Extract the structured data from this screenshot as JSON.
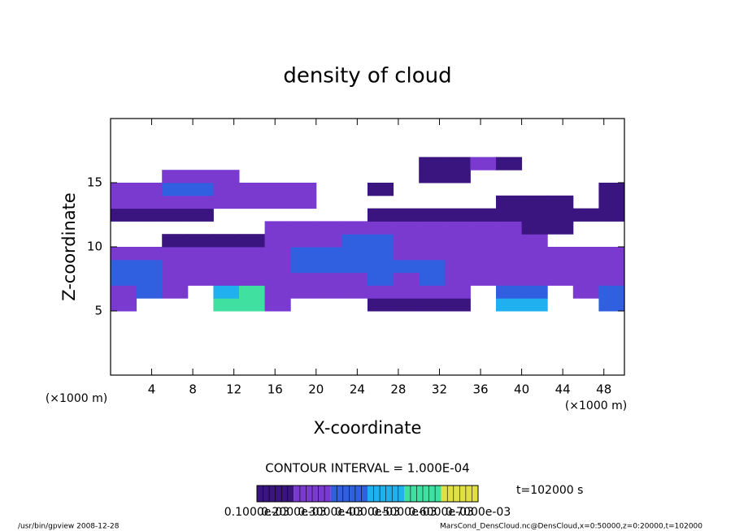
{
  "chart_data": {
    "type": "heatmap",
    "title": "density of cloud",
    "xlabel": "X-coordinate",
    "ylabel": "Z-coordinate",
    "x_unit_left": "(×1000 m)",
    "x_unit_right": "(×1000 m)",
    "contour_interval": "CONTOUR INTERVAL = 1.000E-04",
    "time": "t=102000 s",
    "footer_left": "/usr/bin/gpview  2008-12-28",
    "footer_right": "MarsCond_DensCloud.nc@DensCloud,x=0:50000,z=0:20000,t=102000",
    "xlim": [
      0,
      50
    ],
    "xticks": [
      4,
      8,
      12,
      16,
      20,
      24,
      28,
      32,
      36,
      40,
      44,
      48
    ],
    "ylim": [
      0,
      20
    ],
    "yticks": [
      5,
      10,
      15
    ],
    "x": [
      0,
      2.5,
      5,
      7.5,
      10,
      12.5,
      15,
      17.5,
      20,
      22.5,
      25,
      27.5,
      30,
      32.5,
      35,
      37.5,
      40,
      42.5,
      45,
      47.5,
      50
    ],
    "y": [
      5,
      6,
      7,
      8,
      9,
      10,
      11,
      12,
      13,
      14,
      15,
      16,
      17
    ],
    "z": [
      [
        0.0002,
        null,
        null,
        null,
        0.0005,
        0.0005,
        0.0002,
        null,
        null,
        null,
        0.0001,
        0.0001,
        0.0001,
        0.0001,
        null,
        0.0004,
        0.0004,
        null,
        null,
        0.0003
      ],
      [
        0.0002,
        0.0003,
        0.0002,
        null,
        0.0004,
        0.0005,
        0.0002,
        0.0002,
        0.0002,
        0.0002,
        0.0002,
        0.0002,
        0.0002,
        0.0002,
        null,
        0.0003,
        0.0003,
        null,
        0.0002,
        0.0003
      ],
      [
        0.0003,
        0.0003,
        0.0002,
        0.0002,
        0.0002,
        0.0002,
        0.0002,
        0.0002,
        0.0002,
        0.0002,
        0.0003,
        0.0002,
        0.0003,
        0.0002,
        0.0002,
        0.0002,
        0.0002,
        0.0002,
        0.0002,
        0.0002
      ],
      [
        0.0003,
        0.0003,
        0.0002,
        0.0002,
        0.0002,
        0.0002,
        0.0002,
        0.0003,
        0.0003,
        0.0003,
        0.0003,
        0.0003,
        0.0003,
        0.0002,
        0.0002,
        0.0002,
        0.0002,
        0.0002,
        0.0002,
        0.0002
      ],
      [
        0.0002,
        0.0002,
        0.0002,
        0.0002,
        0.0002,
        0.0002,
        0.0002,
        0.0003,
        0.0003,
        0.0003,
        0.0003,
        0.0002,
        0.0002,
        0.0002,
        0.0002,
        0.0002,
        0.0002,
        0.0002,
        0.0002,
        0.0002
      ],
      [
        null,
        null,
        0.0001,
        0.0001,
        0.0001,
        0.0001,
        0.0002,
        0.0002,
        0.0002,
        0.0003,
        0.0003,
        0.0002,
        0.0002,
        0.0002,
        0.0002,
        0.0002,
        0.0002,
        null,
        null,
        null
      ],
      [
        null,
        null,
        null,
        null,
        null,
        null,
        0.0002,
        0.0002,
        0.0002,
        0.0002,
        0.0002,
        0.0002,
        0.0002,
        0.0002,
        0.0002,
        0.0002,
        0.0001,
        0.0001,
        null,
        null
      ],
      [
        0.0001,
        0.0001,
        0.0001,
        0.0001,
        null,
        null,
        null,
        null,
        null,
        null,
        0.0001,
        0.0001,
        0.0001,
        0.0001,
        0.0001,
        0.0001,
        0.0001,
        0.0001,
        0.0001,
        0.0001
      ],
      [
        0.0002,
        0.0002,
        0.0002,
        0.0002,
        0.0002,
        0.0002,
        0.0002,
        0.0002,
        null,
        null,
        null,
        null,
        null,
        null,
        null,
        0.0001,
        0.0001,
        0.0001,
        null,
        0.0001
      ],
      [
        0.0002,
        0.0002,
        0.0003,
        0.0003,
        0.0002,
        0.0002,
        0.0002,
        0.0002,
        null,
        null,
        0.0001,
        null,
        null,
        null,
        null,
        null,
        null,
        null,
        null,
        0.0001
      ],
      [
        null,
        null,
        0.0002,
        0.0002,
        0.0002,
        null,
        null,
        null,
        null,
        null,
        null,
        null,
        0.0001,
        0.0001,
        null,
        null,
        null,
        null,
        null,
        null
      ],
      [
        null,
        null,
        null,
        null,
        null,
        null,
        null,
        null,
        null,
        null,
        null,
        null,
        0.0001,
        0.0001,
        0.0002,
        0.0001,
        null,
        null,
        null,
        null
      ]
    ],
    "colors": [
      "#3a1580",
      "#7a3ad0",
      "#3060e0",
      "#20b0f0",
      "#40e0a0",
      "#e0e040",
      "#e04020"
    ],
    "colorbar_ticks": [
      {
        "value": 0.0001,
        "label": "0.1000e-03"
      },
      {
        "value": 0.0002,
        "label": "0.2000e-03"
      },
      {
        "value": 0.0003,
        "label": "0.3000e-03"
      },
      {
        "value": 0.0004,
        "label": "0.4000e-03"
      },
      {
        "value": 0.0005,
        "label": "0.5000e-03"
      },
      {
        "value": 0.0006,
        "label": "0.6000e-03"
      },
      {
        "value": 0.0007,
        "label": "0.7000e-03"
      }
    ]
  }
}
